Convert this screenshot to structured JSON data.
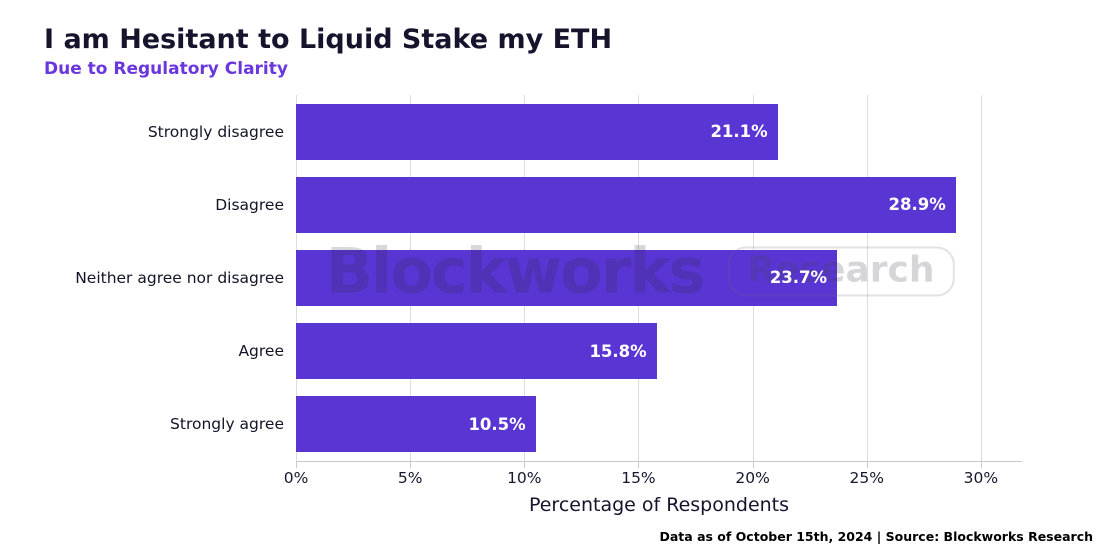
{
  "header": {
    "title": "I am Hesitant to Liquid Stake my ETH",
    "subtitle": "Due to Regulatory Clarity"
  },
  "chart_data": {
    "type": "bar",
    "orientation": "horizontal",
    "title": "I am Hesitant to Liquid Stake my ETH",
    "subtitle": "Due to Regulatory Clarity",
    "categories": [
      "Strongly disagree",
      "Disagree",
      "Neither agree nor disagree",
      "Agree",
      "Strongly agree"
    ],
    "values": [
      21.1,
      28.9,
      23.7,
      15.8,
      10.5
    ],
    "value_labels": [
      "21.1%",
      "28.9%",
      "23.7%",
      "15.8%",
      "10.5%"
    ],
    "xlabel": "Percentage of Respondents",
    "ylabel": "",
    "xlim": [
      0,
      31.8
    ],
    "xticks": [
      0,
      5,
      10,
      15,
      20,
      25,
      30
    ],
    "xtick_labels": [
      "0%",
      "5%",
      "10%",
      "15%",
      "20%",
      "25%",
      "30%"
    ],
    "grid": "vertical",
    "legend": "none",
    "bar_color": "#5935d4",
    "bar_label_color": "#ffffff",
    "grid_color": "#dcdcdc"
  },
  "watermark": {
    "brand": "Blockworks",
    "badge": "Research"
  },
  "footer": {
    "text": "Data as of October 15th, 2024 | Source: Blockworks Research"
  }
}
